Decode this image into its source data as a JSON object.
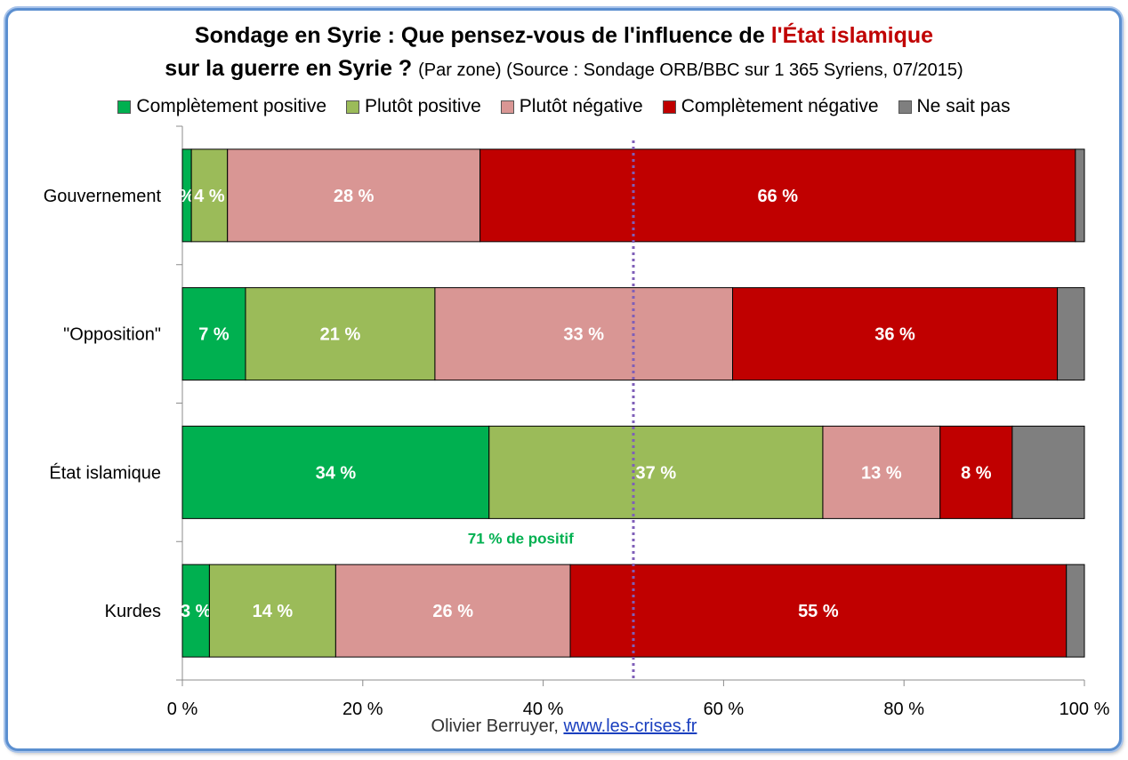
{
  "title": {
    "line1_prefix": "Sondage en Syrie : Que pensez-vous de l'influence de ",
    "line1_highlight": "l'État islamique",
    "line2_main": "sur la guerre en Syrie ? ",
    "line2_sub": "(Par zone) (Source : Sondage ORB/BBC sur 1 365 Syriens, 07/2015)"
  },
  "footer": {
    "author": "Olivier Berruyer, ",
    "link": "www.les-crises.fr"
  },
  "colors": {
    "completement_positive": "#00b050",
    "plutot_positive": "#9bbb59",
    "plutot_negative": "#d99694",
    "completement_negative": "#c00000",
    "ne_sait_pas": "#7f7f7f",
    "reference_line": "#7f5fb8",
    "annotation": "#00b050",
    "title_highlight": "#c00000"
  },
  "chart_data": {
    "type": "bar",
    "orientation": "horizontal",
    "stacked": true,
    "categories": [
      "Gouvernement",
      "\"Opposition\"",
      "État islamique",
      "Kurdes"
    ],
    "series": [
      {
        "name": "Complètement positive",
        "values": [
          1,
          7,
          34,
          3
        ],
        "labels": [
          "%",
          "7 %",
          "34 %",
          "3 %"
        ],
        "color": "#00b050"
      },
      {
        "name": "Plutôt positive",
        "values": [
          4,
          21,
          37,
          14
        ],
        "labels": [
          "4 %",
          "21 %",
          "37 %",
          "14 %"
        ],
        "color": "#9bbb59"
      },
      {
        "name": "Plutôt négative",
        "values": [
          28,
          33,
          13,
          26
        ],
        "labels": [
          "28 %",
          "33 %",
          "13 %",
          "26 %"
        ],
        "color": "#d99694"
      },
      {
        "name": "Complètement négative",
        "values": [
          66,
          36,
          8,
          55
        ],
        "labels": [
          "66 %",
          "36 %",
          "8 %",
          "55 %"
        ],
        "color": "#c00000"
      },
      {
        "name": "Ne sait pas",
        "values": [
          1,
          3,
          8,
          2
        ],
        "labels": [
          "",
          "",
          "",
          ""
        ],
        "color": "#7f7f7f"
      }
    ],
    "xlim": [
      0,
      100
    ],
    "xticks": [
      "0 %",
      "20 %",
      "40 %",
      "60 %",
      "80 %",
      "100 %"
    ],
    "xtick_values": [
      0,
      20,
      40,
      60,
      80,
      100
    ],
    "reference_line": 50,
    "annotation": {
      "text": "71 % de positif",
      "category": "État islamique"
    },
    "legend_position": "top",
    "grid": false
  }
}
